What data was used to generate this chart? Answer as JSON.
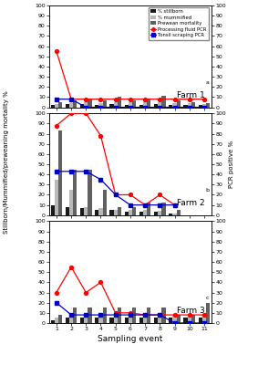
{
  "farms": [
    {
      "label": "Farm 1",
      "superscript": "a",
      "n_events": 11,
      "stillborn": [
        2,
        3,
        3,
        2,
        3,
        2,
        2,
        3,
        2,
        2,
        2
      ],
      "mummified": [
        3,
        4,
        5,
        4,
        5,
        5,
        6,
        5,
        4,
        4,
        3
      ],
      "prewean": [
        5,
        7,
        9,
        7,
        10,
        7,
        8,
        11,
        7,
        5,
        4
      ],
      "proc_fluid_pcr": [
        55,
        8,
        8,
        8,
        8,
        8,
        8,
        8,
        8,
        8,
        8
      ],
      "tonsil_pcr": [
        8,
        8,
        0,
        0,
        0,
        0,
        0,
        0,
        0,
        0,
        0
      ]
    },
    {
      "label": "Farm 2",
      "superscript": "b",
      "n_events": 9,
      "stillborn": [
        10,
        8,
        7,
        5,
        5,
        3,
        3,
        3,
        2,
        0,
        0
      ],
      "mummified": [
        35,
        25,
        8,
        7,
        5,
        5,
        5,
        4,
        2,
        0,
        0
      ],
      "prewean": [
        83,
        45,
        45,
        25,
        8,
        8,
        12,
        12,
        5,
        0,
        0
      ],
      "proc_fluid_pcr": [
        88,
        100,
        100,
        78,
        20,
        20,
        10,
        20,
        10,
        null,
        null
      ],
      "tonsil_pcr": [
        43,
        43,
        43,
        35,
        20,
        10,
        10,
        10,
        10,
        null,
        null
      ]
    },
    {
      "label": "Farm 3",
      "superscript": "c",
      "n_events": 11,
      "stillborn": [
        3,
        5,
        5,
        5,
        5,
        5,
        5,
        5,
        5,
        5,
        5
      ],
      "mummified": [
        5,
        8,
        8,
        8,
        8,
        8,
        8,
        8,
        8,
        8,
        8
      ],
      "prewean": [
        8,
        15,
        15,
        15,
        15,
        15,
        15,
        15,
        8,
        8,
        20
      ],
      "proc_fluid_pcr": [
        30,
        55,
        30,
        40,
        10,
        10,
        8,
        8,
        8,
        8,
        8
      ],
      "tonsil_pcr": [
        20,
        8,
        8,
        8,
        8,
        8,
        8,
        8,
        0,
        0,
        0
      ]
    }
  ],
  "colors": {
    "stillborn": "#1a1a1a",
    "mummified": "#b8b8b8",
    "prewean": "#606060",
    "proc_fluid": "#ff0000",
    "tonsil": "#0000cc"
  },
  "ylim": [
    0,
    100
  ],
  "yticks": [
    0,
    10,
    20,
    30,
    40,
    50,
    60,
    70,
    80,
    90,
    100
  ],
  "ylabel_left": "Stillborn/Mummified/preweaning mortality %",
  "ylabel_right": "PCR positive %",
  "xlabel": "Sampling event",
  "legend_labels": [
    "% stillborn",
    "% mummified",
    "Prewean mortality",
    "Processing fluid PCR",
    "Tonsil scraping PCR"
  ]
}
